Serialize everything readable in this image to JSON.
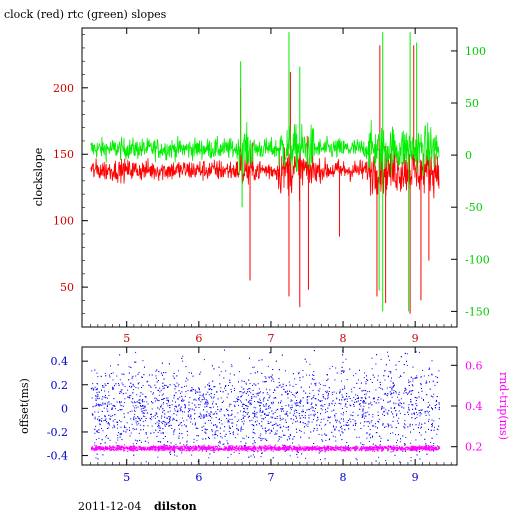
{
  "title": "clock (red) rtc (green) slopes",
  "footer": {
    "date": "2011-12-04",
    "host": "dilston"
  },
  "chart_data": [
    {
      "type": "line",
      "ylabel": "clockslope",
      "ylim": [
        20,
        245
      ],
      "y2lim": [
        -165,
        122
      ],
      "xlim": [
        4.38,
        9.58
      ],
      "x_ticks": [
        "5",
        "6",
        "7",
        "8",
        "9"
      ],
      "y_ticks": [
        "50",
        "100",
        "150",
        "200"
      ],
      "y2_ticks": [
        "-150",
        "-100",
        "-50",
        "0",
        "50",
        "100"
      ],
      "grid": false,
      "colors": {
        "clock": "#ff0000",
        "rtc": "#00ee00",
        "axes": "#000000",
        "y_ticks": "#cc0000",
        "y2_ticks": "#00cc00",
        "x_ticks": "#cc0000"
      },
      "series": [
        {
          "name": "clock",
          "axis": "left",
          "x_range": [
            4.5,
            9.33
          ],
          "baseline": 138,
          "spikes": [
            {
              "x": 6.71,
              "y": 55
            },
            {
              "x": 7.25,
              "y": 43
            },
            {
              "x": 7.4,
              "y": 35
            },
            {
              "x": 7.52,
              "y": 48
            },
            {
              "x": 8.47,
              "y": 43
            },
            {
              "x": 8.59,
              "y": 38
            },
            {
              "x": 8.93,
              "y": 30
            },
            {
              "x": 9.08,
              "y": 40
            },
            {
              "x": 9.19,
              "y": 70
            },
            {
              "x": 8.98,
              "y": 232
            },
            {
              "x": 8.51,
              "y": 232
            },
            {
              "x": 7.27,
              "y": 212
            },
            {
              "x": 6.58,
              "y": 200
            },
            {
              "x": 7.95,
              "y": 88
            }
          ]
        },
        {
          "name": "rtc",
          "axis": "right",
          "x_range": [
            4.5,
            9.33
          ],
          "baseline": 6,
          "spikes": [
            {
              "x": 7.25,
              "y": 118
            },
            {
              "x": 8.55,
              "y": 118
            },
            {
              "x": 8.93,
              "y": 118
            },
            {
              "x": 9.02,
              "y": 108
            },
            {
              "x": 6.58,
              "y": 90
            },
            {
              "x": 7.4,
              "y": 85
            },
            {
              "x": 8.55,
              "y": -150
            },
            {
              "x": 8.91,
              "y": -150
            },
            {
              "x": 8.5,
              "y": -130
            },
            {
              "x": 6.6,
              "y": -50
            }
          ]
        }
      ]
    },
    {
      "type": "scatter",
      "ylabel": "offset(ms)",
      "y2label": "rnd-trip(ms)",
      "ylim": [
        -0.48,
        0.52
      ],
      "y2lim": [
        0.11,
        0.69
      ],
      "xlim": [
        4.38,
        9.58
      ],
      "x_ticks": [
        "5",
        "6",
        "7",
        "8",
        "9"
      ],
      "y_ticks": [
        "0.4",
        "0.2",
        "0",
        "-0.2",
        "-0.4"
      ],
      "y2_ticks": [
        "0.6",
        "0.4",
        "0.2"
      ],
      "grid": false,
      "colors": {
        "offset": "#0000ff",
        "rndtrip": "#ff00ff",
        "axes": "#000000"
      },
      "series": [
        {
          "name": "offset",
          "axis": "left",
          "x_range": [
            4.5,
            9.33
          ],
          "mean": 0.0,
          "spread": 0.18
        },
        {
          "name": "rnd-trip",
          "axis": "right",
          "x_range": [
            4.5,
            9.33
          ],
          "mean": 0.195,
          "spread": 0.006
        }
      ]
    }
  ]
}
